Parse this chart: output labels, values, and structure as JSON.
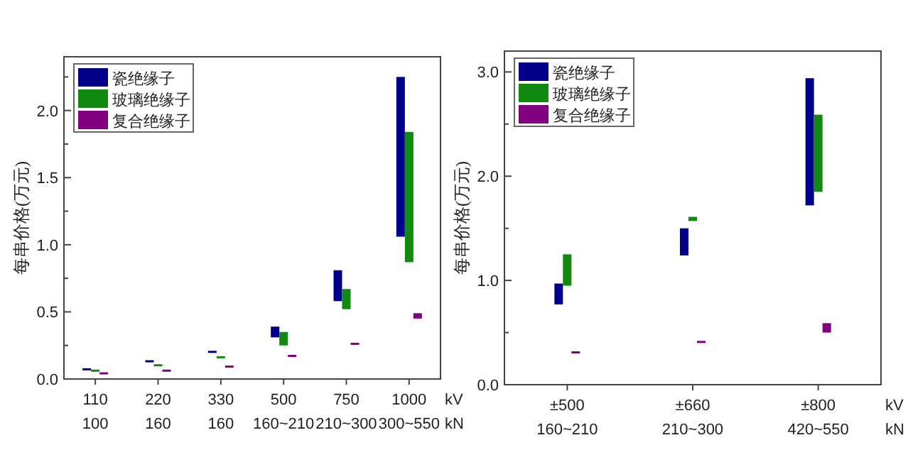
{
  "chart_data": [
    {
      "type": "bar",
      "ylabel": "每串价格(万元)",
      "xlabel": "kV\nkN",
      "legend": "top left",
      "grid": false,
      "categories": [
        "110\n100",
        "220\n160",
        "330\n160",
        "500\n160~210",
        "750\n210~300",
        "1000\n300~550"
      ],
      "ylim": [
        0,
        2.4
      ],
      "yticks": [
        {
          "value": 0,
          "label": "0.0"
        },
        {
          "value": 0.25,
          "label": null
        },
        {
          "value": 0.5,
          "label": "0.5"
        },
        {
          "value": 0.75,
          "label": null
        },
        {
          "value": 1,
          "label": "1.0"
        },
        {
          "value": 1.25,
          "label": null
        },
        {
          "value": 1.5,
          "label": "1.5"
        },
        {
          "value": 1.75,
          "label": null
        },
        {
          "value": 2,
          "label": "2.0"
        },
        {
          "value": 2.25,
          "label": null
        }
      ],
      "series": [
        {
          "name": "瓷绝缘子",
          "color": "#00008b",
          "base": [
            0.07,
            0.13,
            0.2,
            0.31,
            0.58,
            1.06
          ],
          "values": [
            0.01,
            0.01,
            0.01,
            0.08,
            0.23,
            1.19
          ]
        },
        {
          "name": "玻璃绝缘子",
          "color": "#128a12",
          "base": [
            0.06,
            0.1,
            0.16,
            0.25,
            0.52,
            0.87
          ],
          "values": [
            0.01,
            0.01,
            0.01,
            0.1,
            0.15,
            0.97
          ]
        },
        {
          "name": "复合绝缘子",
          "color": "#800080",
          "base": [
            0.04,
            0.06,
            0.09,
            0.17,
            0.26,
            0.45
          ],
          "values": [
            0.01,
            0.01,
            0.01,
            0.01,
            0.01,
            0.04
          ]
        }
      ]
    },
    {
      "type": "bar",
      "ylabel": "每串价格(万元)",
      "xlabel": "kV\nkN",
      "legend": "top left",
      "grid": false,
      "categories": [
        "±500\n160~210",
        "±660\n210~300",
        "±800\n420~550"
      ],
      "ylim": [
        0,
        3.2
      ],
      "yticks": [
        {
          "value": 0,
          "label": "0.0"
        },
        {
          "value": 0.5,
          "label": null
        },
        {
          "value": 1,
          "label": "1.0"
        },
        {
          "value": 1.5,
          "label": null
        },
        {
          "value": 2,
          "label": "2.0"
        },
        {
          "value": 2.5,
          "label": null
        },
        {
          "value": 3,
          "label": "3.0"
        }
      ],
      "series": [
        {
          "name": "瓷绝缘子",
          "color": "#00008b",
          "base": [
            0.77,
            1.24,
            1.72
          ],
          "values": [
            0.2,
            0.26,
            1.22
          ]
        },
        {
          "name": "玻璃绝缘子",
          "color": "#128a12",
          "base": [
            0.95,
            1.57,
            1.85
          ],
          "values": [
            0.3,
            0.04,
            0.74
          ]
        },
        {
          "name": "复合绝缘子",
          "color": "#800080",
          "base": [
            0.3,
            0.4,
            0.5
          ],
          "values": [
            0.02,
            0.02,
            0.09
          ]
        }
      ]
    }
  ]
}
